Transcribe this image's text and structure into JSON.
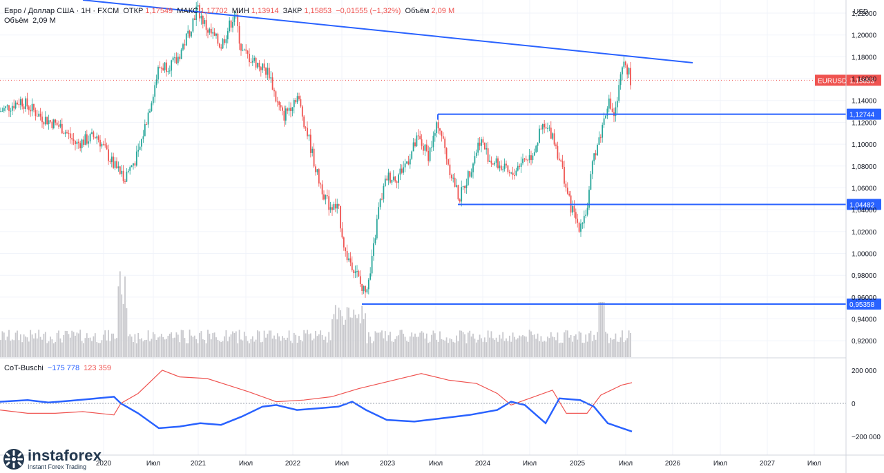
{
  "header": {
    "symbol": "Евро / Доллар США · 1Н · FXCM",
    "open_label": "ОТКР",
    "open": "1,17549",
    "high_label": "МАКС",
    "high": "1,17702",
    "low_label": "МИН",
    "low": "1,13914",
    "close_label": "ЗАКР",
    "close": "1,15853",
    "change": "−0,01555 (−1,32%)",
    "vol_label": "Объём",
    "vol": "2,09 M",
    "vol_line_label": "Объём",
    "vol_line_value": "2,09 M"
  },
  "currency": "USD",
  "indicator": {
    "name": "CoT-Buschi",
    "value_blue": "−175 778",
    "value_red": "123 359"
  },
  "logo": {
    "name": "instaforex",
    "tagline": "Instant Forex Trading"
  },
  "chart_data": {
    "type": "candlestick",
    "symbol": "EURUSD",
    "price_axis_ticks": [
      "1,22000",
      "1,20000",
      "1,18000",
      "1,16000",
      "1,14000",
      "1,12000",
      "1,10000",
      "1,08000",
      "1,06000",
      "1,04000",
      "1,02000",
      "1,00000",
      "0,98000",
      "0,96000",
      "0,94000",
      "0,92000"
    ],
    "price_ylim": [
      0.905,
      1.232
    ],
    "time_axis_labels": [
      "2020",
      "Июл",
      "2021",
      "Июл",
      "2022",
      "Июл",
      "2023",
      "Июл",
      "2024",
      "Июл",
      "2025",
      "Июл",
      "2026",
      "Июл",
      "2027",
      "Июл"
    ],
    "indicator_ticks": [
      "200 000",
      "0",
      "−200 000"
    ],
    "current_price": {
      "label": "EURUSD",
      "value": "1,15853",
      "price": 1.15853
    },
    "levels": [
      {
        "value": "1,12744",
        "price": 1.12744
      },
      {
        "value": "1,04482",
        "price": 1.04482
      },
      {
        "value": "0,95358",
        "price": 0.95358
      }
    ],
    "colors": {
      "up": "#26a69a",
      "down": "#ef5350",
      "line": "#2962ff",
      "grid": "#f0f3fa",
      "volume": "#c8c8cc"
    },
    "price_path": [
      [
        0.0,
        1.12
      ],
      [
        0.1,
        1.145
      ],
      [
        0.18,
        1.085
      ],
      [
        0.22,
        1.09
      ],
      [
        0.26,
        1.16
      ],
      [
        0.31,
        1.225
      ],
      [
        0.345,
        1.195
      ],
      [
        0.38,
        1.215
      ],
      [
        0.42,
        1.17
      ],
      [
        0.47,
        1.16
      ],
      [
        0.52,
        1.13
      ],
      [
        0.56,
        1.1
      ],
      [
        0.61,
        1.16
      ],
      [
        0.66,
        1.13
      ],
      [
        0.7,
        1.09
      ],
      [
        0.75,
        1.05
      ],
      [
        0.8,
        1.06
      ],
      [
        0.84,
        1.01
      ],
      [
        0.88,
        0.99
      ],
      [
        0.93,
        0.97
      ],
      [
        0.97,
        1.0
      ],
      [
        1.0,
        0.96
      ]
    ]
  }
}
